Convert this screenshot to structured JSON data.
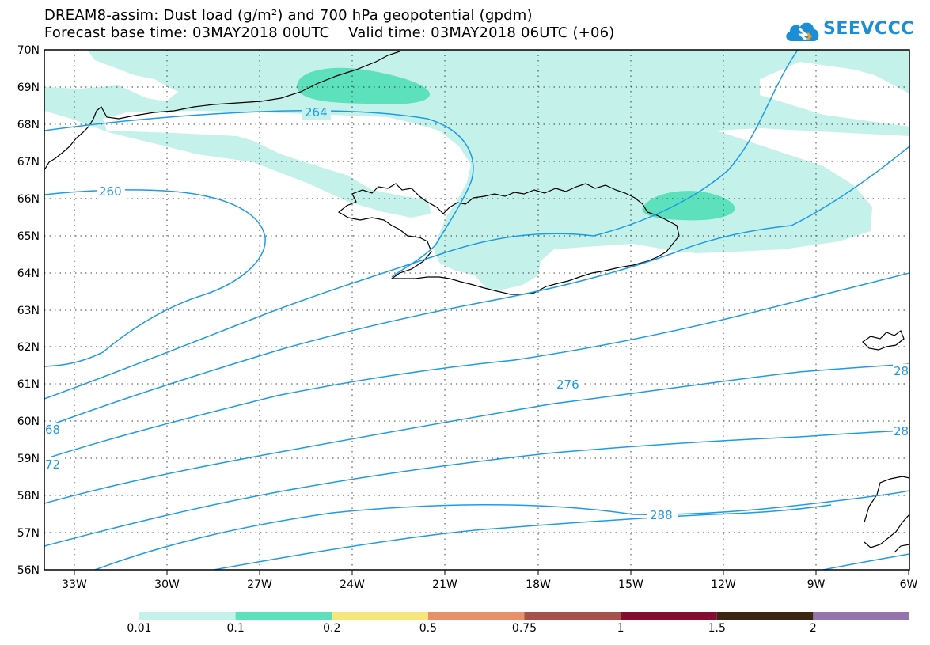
{
  "title": {
    "line1": "DREAM8-assim: Dust load (g/m²) and 700 hPa geopotential (gpdm)",
    "line2": "Forecast base time: 03MAY2018 00UTC    Valid time: 03MAY2018 06UTC (+06)"
  },
  "logo": {
    "text": "SEEVCCC",
    "icon": "cloud-logo-icon"
  },
  "map": {
    "lon_range": [
      -34,
      -6
    ],
    "lat_range": [
      56,
      70
    ],
    "x_ticks": [
      "33W",
      "30W",
      "27W",
      "24W",
      "21W",
      "18W",
      "15W",
      "12W",
      "9W",
      "6W"
    ],
    "y_ticks": [
      "70N",
      "69N",
      "68N",
      "67N",
      "66N",
      "65N",
      "64N",
      "63N",
      "62N",
      "61N",
      "60N",
      "59N",
      "58N",
      "57N",
      "56N"
    ],
    "grid": "dotted",
    "contour_color": "#1e9be6",
    "coastline_color": "#000000",
    "contour_labels": [
      {
        "text": "264"
      },
      {
        "text": "260"
      },
      {
        "text": "276"
      },
      {
        "text": "288"
      },
      {
        "text": "68"
      },
      {
        "text": "72"
      },
      {
        "text": "28"
      },
      {
        "text": "28"
      }
    ]
  },
  "colorbar": {
    "colors": [
      "#c4f1ea",
      "#5de1bc",
      "#f6e77a",
      "#e8906a",
      "#a6524c",
      "#840c30",
      "#3c2612",
      "#9673ad"
    ],
    "labels": [
      "0.01",
      "0.1",
      "0.2",
      "0.5",
      "0.75",
      "1",
      "1.5",
      "2"
    ]
  }
}
